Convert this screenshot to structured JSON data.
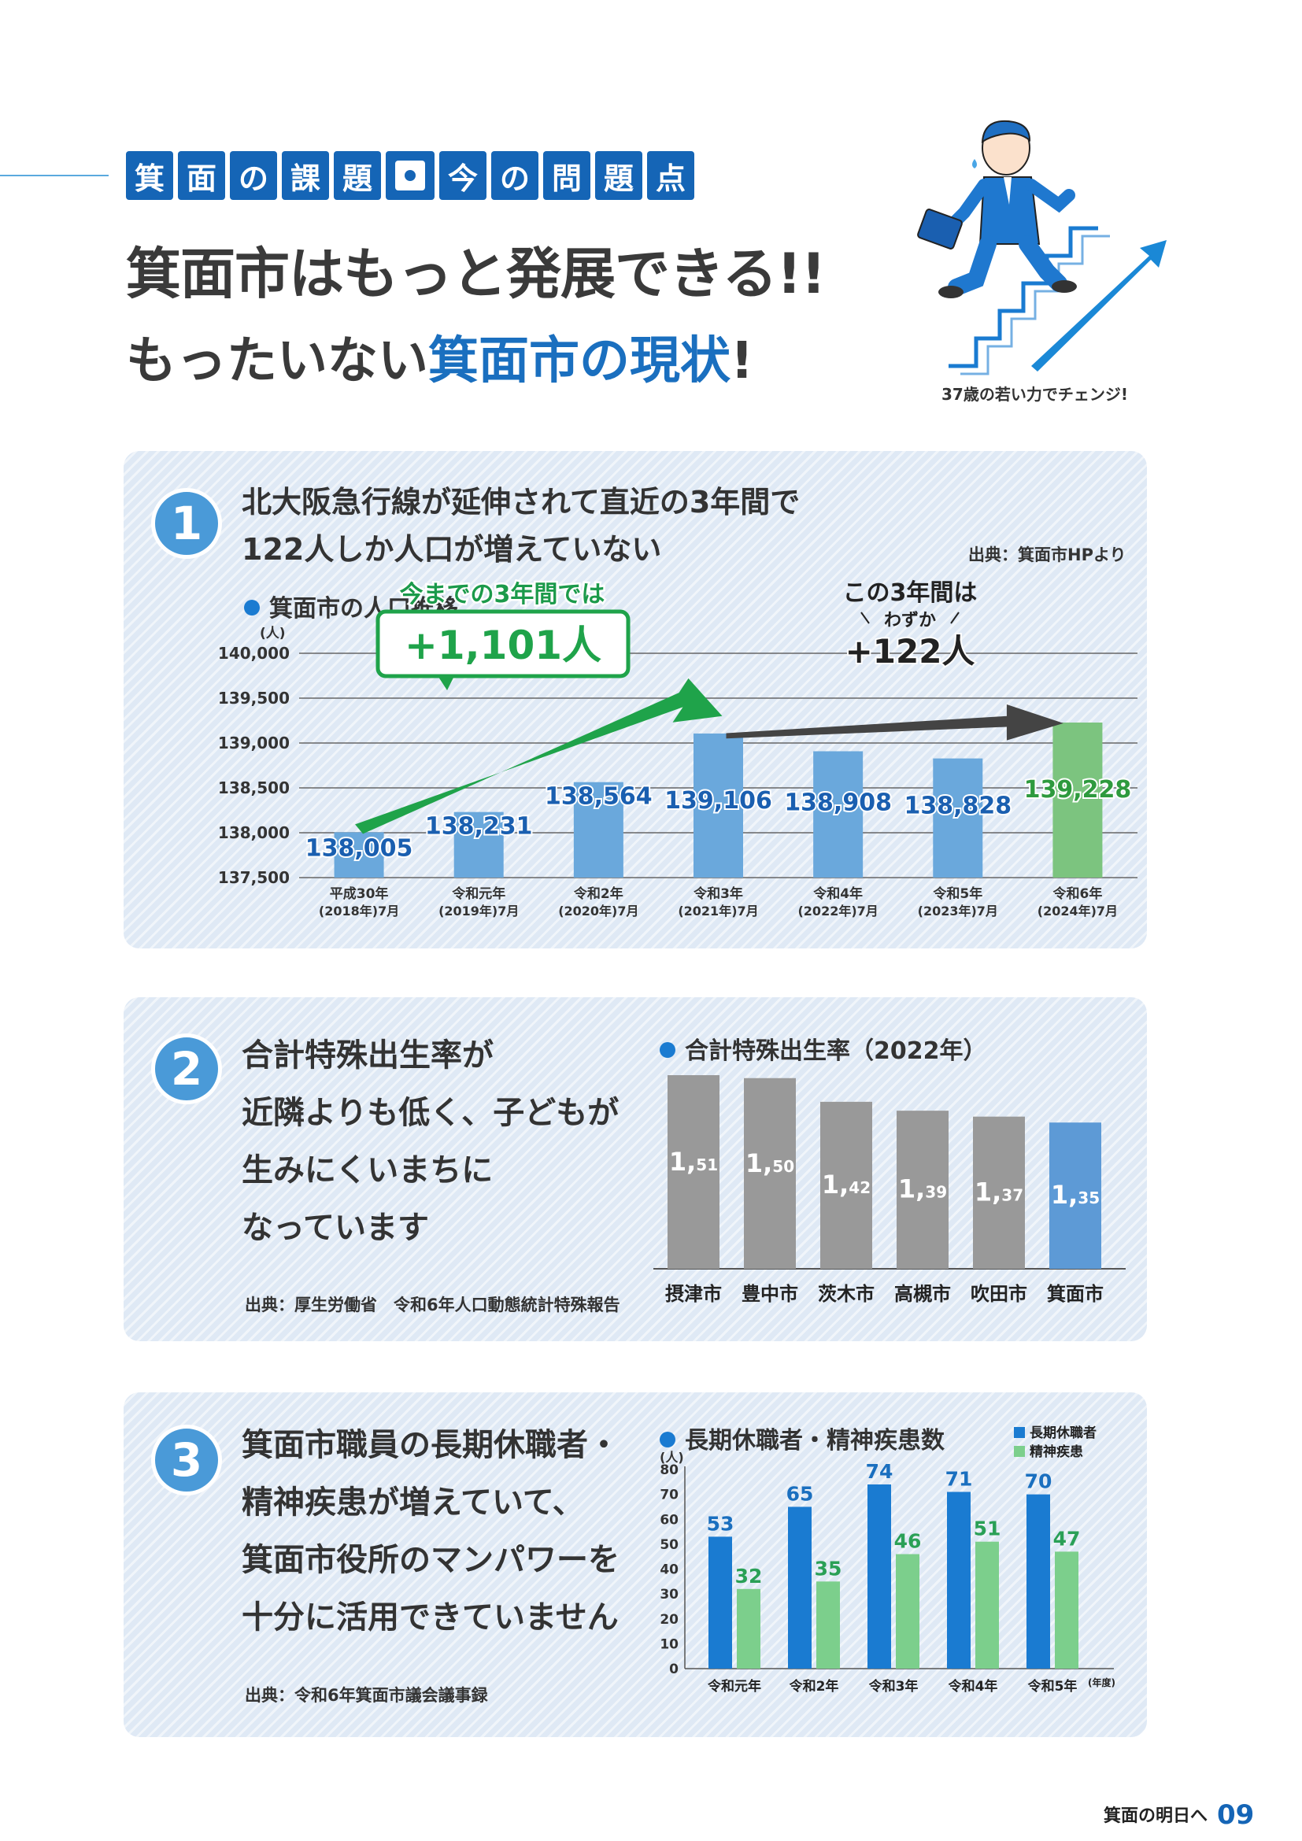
{
  "header": {
    "tag_chars": [
      "箕",
      "面",
      "の",
      "課",
      "題",
      "今",
      "の",
      "問",
      "題",
      "点"
    ],
    "headline_line1": "箕面市はもっと発展できる!!",
    "headline_line2_part1": "もったいない",
    "headline_line2_part2": "箕面市の現状",
    "headline_line2_part3": "!",
    "illustration_caption": "37歳の若い力でチェンジ!"
  },
  "section1": {
    "number": "1",
    "title_line1": "北大阪急行線が延伸されて直近の3年間で",
    "title_line2": "122人しか人口が増えていない",
    "source": "出典：箕面市HPより",
    "chart_title": "箕面市の人口推移",
    "callout_left_label": "今までの3年間では",
    "callout_left_value": "+1,101人",
    "callout_right_label": "この3年間は",
    "callout_right_sub": "わずか",
    "callout_right_value": "+122人",
    "colors": {
      "bar": "#6aa8dc",
      "highlight": "#7cc47f",
      "value_blue": "#1a5fb0",
      "value_green": "#2e9a3e",
      "arrow_green": "#1fa34a",
      "arrow_dark": "#444444"
    }
  },
  "section2": {
    "number": "2",
    "text_lines": [
      "合計特殊出生率が",
      "近隣よりも低く、子どもが",
      "生みにくいまちに",
      "なっています"
    ],
    "source": "出典：厚生労働省　令和6年人口動態統計特殊報告",
    "chart_title": "合計特殊出生率（2022年）",
    "colors": {
      "bar": "#999999",
      "highlight": "#5d9ad6"
    }
  },
  "section3": {
    "number": "3",
    "text_lines": [
      "箕面市職員の長期休職者・",
      "精神疾患が増えていて、",
      "箕面市役所のマンパワーを",
      "十分に活用できていません"
    ],
    "source": "出典：令和6年箕面市議会議事録",
    "chart_title": "長期休職者・精神疾患数",
    "colors": {
      "series1": "#1a7bd1",
      "series2": "#7ccf8c",
      "label1": "#1a6fbf",
      "label2": "#2aa056"
    }
  },
  "footer": {
    "text": "箕面の明日へ",
    "page": "09"
  },
  "chart_data": [
    {
      "type": "bar",
      "title": "箕面市の人口推移",
      "ylabel": "(人)",
      "categories": [
        [
          "平成30年",
          "(2018年)7月"
        ],
        [
          "令和元年",
          "(2019年)7月"
        ],
        [
          "令和2年",
          "(2020年)7月"
        ],
        [
          "令和3年",
          "(2021年)7月"
        ],
        [
          "令和4年",
          "(2022年)7月"
        ],
        [
          "令和5年",
          "(2023年)7月"
        ],
        [
          "令和6年",
          "(2024年)7月"
        ]
      ],
      "values": [
        138005,
        138231,
        138564,
        139106,
        138908,
        138828,
        139228
      ],
      "value_labels": [
        "138,005",
        "138,231",
        "138,564",
        "139,106",
        "138,908",
        "138,828",
        "139,228"
      ],
      "ylim": [
        137500,
        140000
      ],
      "yticks": [
        137500,
        138000,
        138500,
        139000,
        139500,
        140000
      ],
      "ytick_labels": [
        "137,500",
        "138,000",
        "138,500",
        "139,000",
        "139,500",
        "140,000"
      ],
      "highlight_index": 6
    },
    {
      "type": "bar",
      "title": "合計特殊出生率（2022年）",
      "categories": [
        "摂津市",
        "豊中市",
        "茨木市",
        "高槻市",
        "吹田市",
        "箕面市"
      ],
      "values": [
        1.51,
        1.5,
        1.42,
        1.39,
        1.37,
        1.35
      ],
      "label_int": [
        "1",
        "1",
        "1",
        "1",
        "1",
        "1"
      ],
      "label_dec": [
        "51",
        "50",
        "42",
        "39",
        "37",
        "35"
      ],
      "highlight_index": 5
    },
    {
      "type": "bar",
      "title": "長期休職者・精神疾患数",
      "ylabel": "(人)",
      "xunit": "(年度)",
      "categories": [
        "令和元年",
        "令和2年",
        "令和3年",
        "令和4年",
        "令和5年"
      ],
      "series": [
        {
          "name": "長期休職者",
          "values": [
            53,
            65,
            74,
            71,
            70
          ]
        },
        {
          "name": "精神疾患",
          "values": [
            32,
            35,
            46,
            51,
            47
          ]
        }
      ],
      "ylim": [
        0,
        80
      ],
      "yticks": [
        0,
        10,
        20,
        30,
        40,
        50,
        60,
        70,
        80
      ]
    }
  ]
}
